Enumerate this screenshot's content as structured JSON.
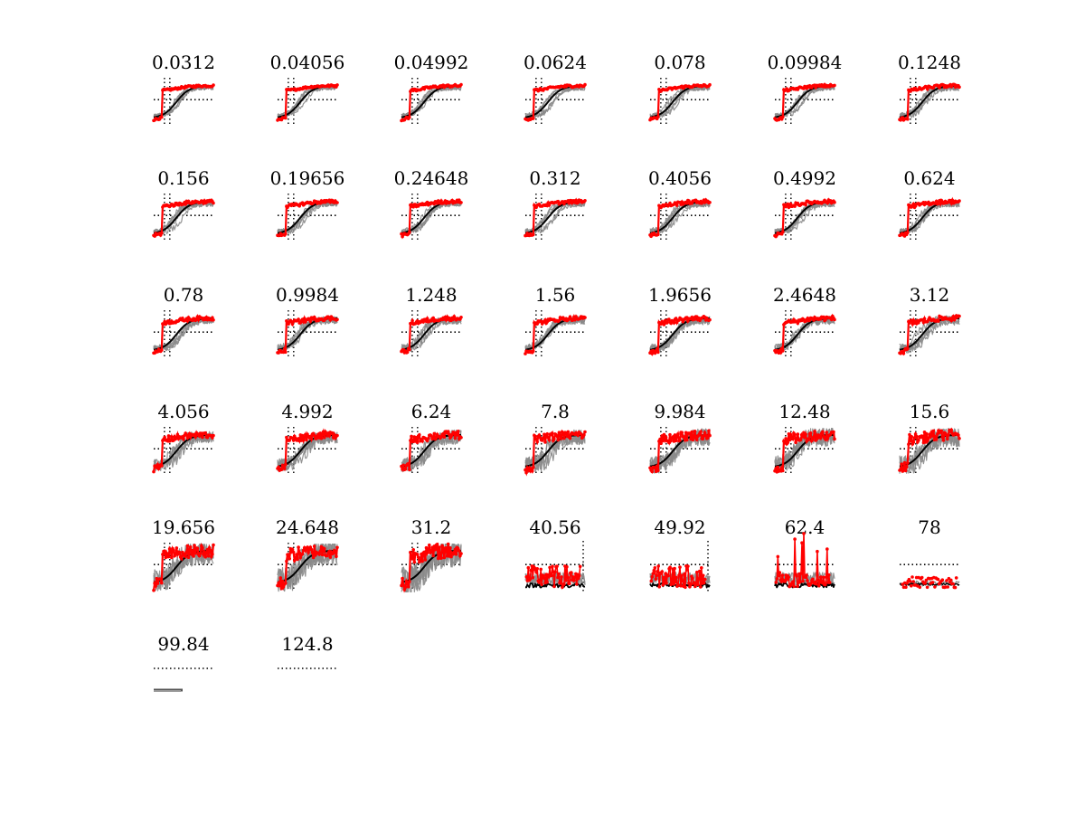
{
  "chart_data": {
    "type": "line",
    "layout": "small-multiples",
    "rows": 6,
    "cols": 7,
    "panels": [
      {
        "title": "0.0312",
        "shape": "sigmoid",
        "trace_noise": 0.04
      },
      {
        "title": "0.04056",
        "shape": "sigmoid",
        "trace_noise": 0.04
      },
      {
        "title": "0.04992",
        "shape": "sigmoid",
        "trace_noise": 0.05
      },
      {
        "title": "0.0624",
        "shape": "sigmoid",
        "trace_noise": 0.05
      },
      {
        "title": "0.078",
        "shape": "sigmoid",
        "trace_noise": 0.05
      },
      {
        "title": "0.09984",
        "shape": "sigmoid",
        "trace_noise": 0.05
      },
      {
        "title": "0.1248",
        "shape": "sigmoid",
        "trace_noise": 0.06
      },
      {
        "title": "0.156",
        "shape": "sigmoid",
        "trace_noise": 0.06
      },
      {
        "title": "0.19656",
        "shape": "sigmoid",
        "trace_noise": 0.06
      },
      {
        "title": "0.24648",
        "shape": "sigmoid",
        "trace_noise": 0.06
      },
      {
        "title": "0.312",
        "shape": "sigmoid",
        "trace_noise": 0.06
      },
      {
        "title": "0.4056",
        "shape": "sigmoid",
        "trace_noise": 0.07
      },
      {
        "title": "0.4992",
        "shape": "sigmoid",
        "trace_noise": 0.07
      },
      {
        "title": "0.624",
        "shape": "sigmoid",
        "trace_noise": 0.07
      },
      {
        "title": "0.78",
        "shape": "sigmoid",
        "trace_noise": 0.07
      },
      {
        "title": "0.9984",
        "shape": "sigmoid",
        "trace_noise": 0.08
      },
      {
        "title": "1.248",
        "shape": "sigmoid",
        "trace_noise": 0.08
      },
      {
        "title": "1.56",
        "shape": "sigmoid",
        "trace_noise": 0.08
      },
      {
        "title": "1.9656",
        "shape": "sigmoid",
        "trace_noise": 0.09
      },
      {
        "title": "2.4648",
        "shape": "sigmoid",
        "trace_noise": 0.09
      },
      {
        "title": "3.12",
        "shape": "sigmoid",
        "trace_noise": 0.1
      },
      {
        "title": "4.056",
        "shape": "sigmoid",
        "trace_noise": 0.12
      },
      {
        "title": "4.992",
        "shape": "sigmoid",
        "trace_noise": 0.13
      },
      {
        "title": "6.24",
        "shape": "sigmoid",
        "trace_noise": 0.15
      },
      {
        "title": "7.8",
        "shape": "sigmoid",
        "trace_noise": 0.16
      },
      {
        "title": "9.984",
        "shape": "sigmoid",
        "trace_noise": 0.18
      },
      {
        "title": "12.48",
        "shape": "sigmoid",
        "trace_noise": 0.2
      },
      {
        "title": "15.6",
        "shape": "sigmoid",
        "trace_noise": 0.2
      },
      {
        "title": "19.656",
        "shape": "sigmoid",
        "trace_noise": 0.24
      },
      {
        "title": "24.648",
        "shape": "sigmoid",
        "trace_noise": 0.26
      },
      {
        "title": "31.2",
        "shape": "sigmoid",
        "trace_noise": 0.3
      },
      {
        "title": "40.56",
        "shape": "noise",
        "trace_noise": 0.35
      },
      {
        "title": "49.92",
        "shape": "noise",
        "trace_noise": 0.35
      },
      {
        "title": "62.4",
        "shape": "noise-tall",
        "trace_noise": 0.4
      },
      {
        "title": "78",
        "shape": "flat",
        "trace_noise": 0.2
      },
      {
        "title": "99.84",
        "shape": "flat-low",
        "trace_noise": 0.05
      },
      {
        "title": "124.8",
        "shape": "empty",
        "trace_noise": 0.0
      }
    ],
    "series": [
      {
        "name": "",
        "color": "#000000",
        "role": "reference"
      },
      {
        "name": "",
        "color": "#808080",
        "role": "traces"
      },
      {
        "name": "",
        "color": "#ff0000",
        "role": "highlighted"
      }
    ],
    "grid": "dotted reference lines",
    "xlabel": "",
    "ylabel": ""
  }
}
